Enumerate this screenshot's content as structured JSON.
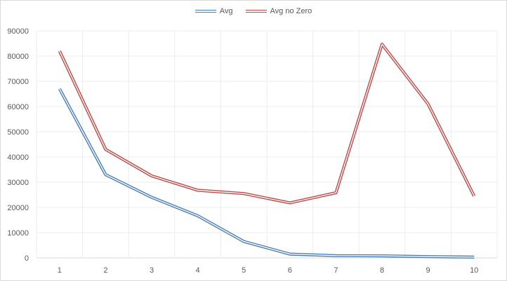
{
  "chart_data": {
    "type": "line",
    "title": "",
    "xlabel": "",
    "ylabel": "",
    "categories": [
      "1",
      "2",
      "3",
      "4",
      "5",
      "6",
      "7",
      "8",
      "9",
      "10"
    ],
    "ylim": [
      0,
      90000
    ],
    "yticks": [
      "0",
      "10000",
      "20000",
      "30000",
      "40000",
      "50000",
      "60000",
      "70000",
      "80000",
      "90000"
    ],
    "grid": true,
    "legend": "top",
    "series": [
      {
        "name": "Avg",
        "color": "#4a7ebb",
        "values": [
          67000,
          33000,
          24000,
          16700,
          6500,
          1500,
          900,
          800,
          500,
          300
        ]
      },
      {
        "name": "Avg no Zero",
        "color": "#be4b48",
        "values": [
          82000,
          43000,
          32500,
          26800,
          25500,
          21800,
          25800,
          84700,
          61000,
          24500
        ]
      }
    ]
  }
}
